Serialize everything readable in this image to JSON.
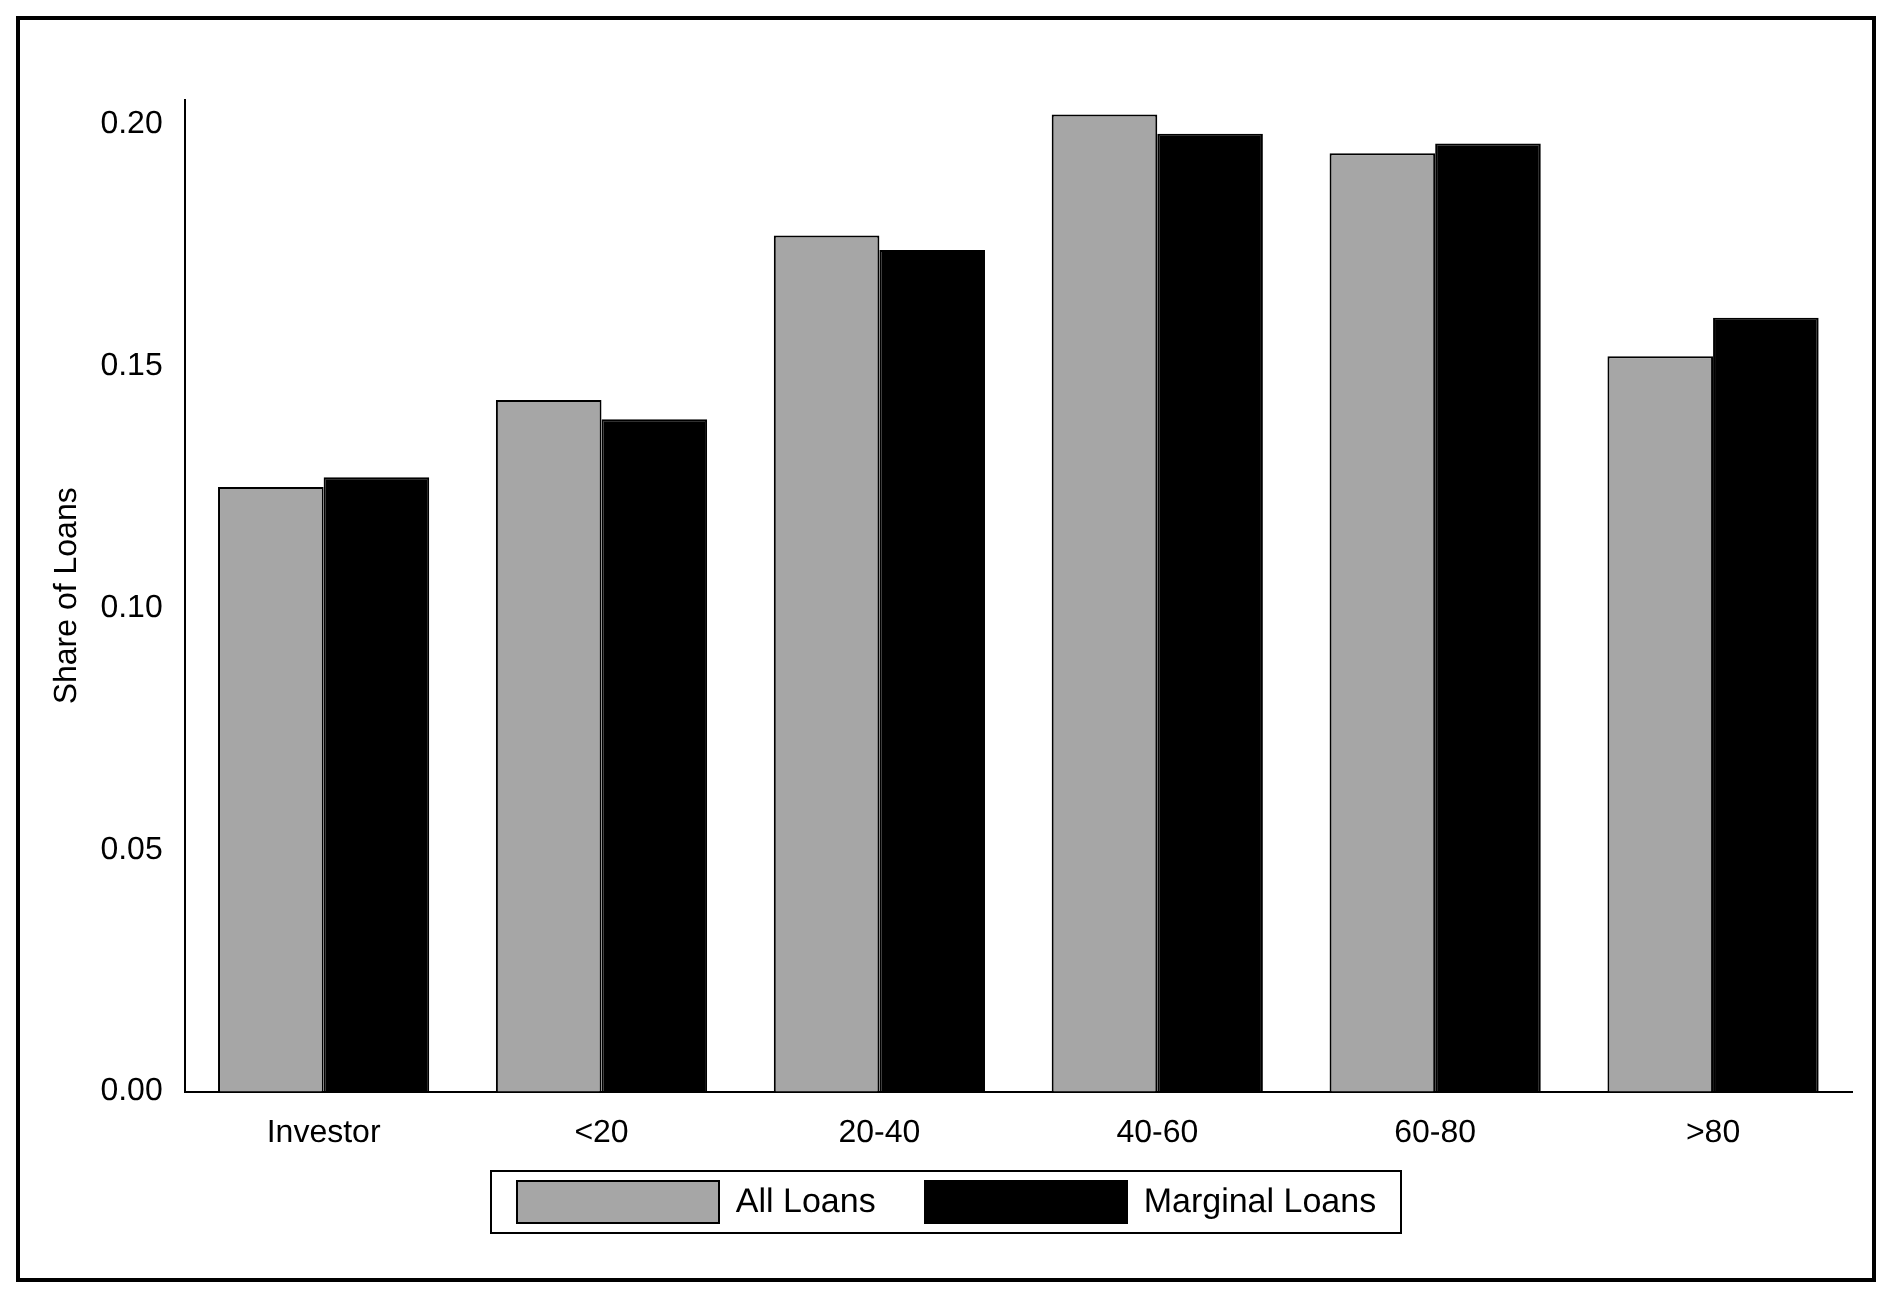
{
  "chart_data": {
    "type": "bar",
    "ylabel": "Share of Loans",
    "categories": [
      "Investor",
      "<20",
      "20-40",
      "40-60",
      "60-80",
      ">80"
    ],
    "series": [
      {
        "name": "All Loans",
        "color": "#a6a6a6",
        "values": [
          0.125,
          0.143,
          0.177,
          0.202,
          0.194,
          0.152
        ]
      },
      {
        "name": "Marginal Loans",
        "color": "#000000",
        "values": [
          0.127,
          0.139,
          0.174,
          0.198,
          0.196,
          0.16
        ]
      }
    ],
    "ylim": [
      0,
      0.205
    ],
    "yticks": [
      {
        "value": 0,
        "label": "0.00"
      },
      {
        "value": 0.05,
        "label": "0.05"
      },
      {
        "value": 0.1,
        "label": "0.10"
      },
      {
        "value": 0.15,
        "label": "0.15"
      },
      {
        "value": 0.2,
        "label": "0.20"
      }
    ],
    "grid": false,
    "legend": "bottom"
  }
}
